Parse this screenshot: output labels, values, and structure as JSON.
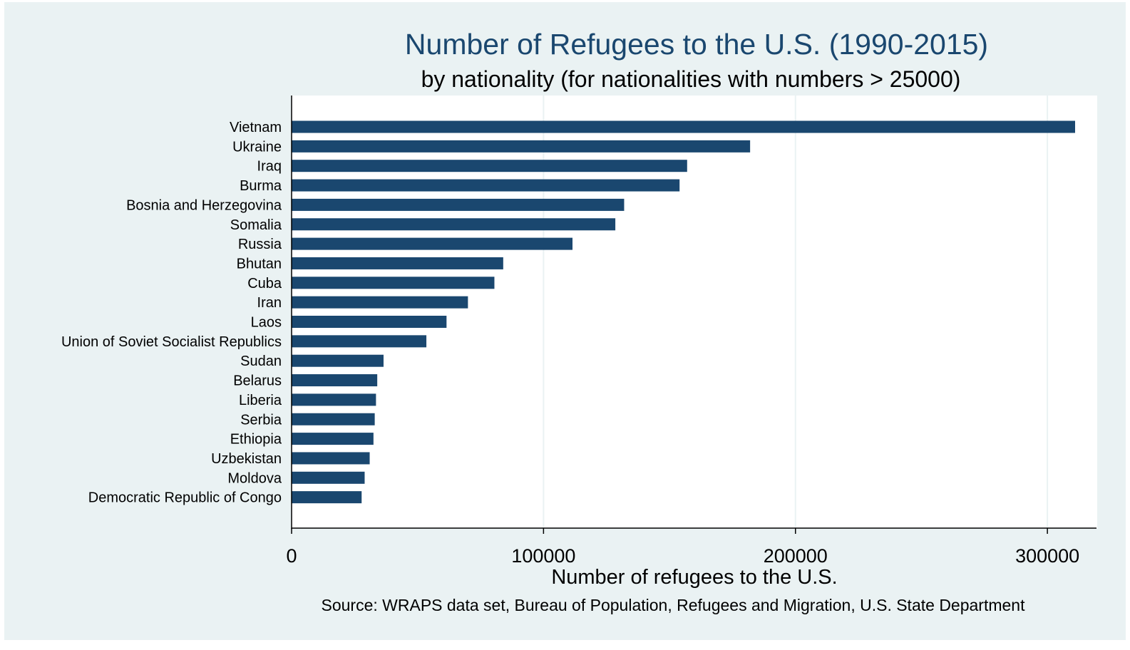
{
  "chart_data": {
    "type": "bar",
    "orientation": "horizontal",
    "title": "Number of Refugees to the U.S. (1990-2015)",
    "subtitle": "by nationality (for nationalities with numbers > 25000)",
    "xlabel": "Number of refugees to the U.S.",
    "note": "Source: WRAPS data set, Bureau of Population, Refugees and Migration, U.S. State Department",
    "xlim": [
      0,
      310000
    ],
    "xticks": [
      0,
      100000,
      200000,
      300000
    ],
    "xtick_labels": [
      "0",
      "100000",
      "200000",
      "300000"
    ],
    "grid": "vertical",
    "categories": [
      "Vietnam",
      "Ukraine",
      "Iraq",
      "Burma",
      "Bosnia and Herzegovina",
      "Somalia",
      "Russia",
      "Bhutan",
      "Cuba",
      "Iran",
      "Laos",
      "Union of Soviet Socialist Republics",
      "Sudan",
      "Belarus",
      "Liberia",
      "Serbia",
      "Ethiopia",
      "Uzbekistan",
      "Moldova",
      "Democratic Republic of Congo"
    ],
    "values": [
      311000,
      182000,
      157000,
      154000,
      132000,
      128500,
      111500,
      84000,
      80500,
      70000,
      61500,
      53500,
      36500,
      34000,
      33500,
      33000,
      32500,
      31000,
      29000,
      27800
    ],
    "colors": {
      "bar": "#1a476f",
      "outer_background": "#eaf2f3",
      "plot_background": "#ffffff",
      "grid": "#eaf2f3",
      "title": "#1a476f",
      "text": "#000000"
    }
  }
}
